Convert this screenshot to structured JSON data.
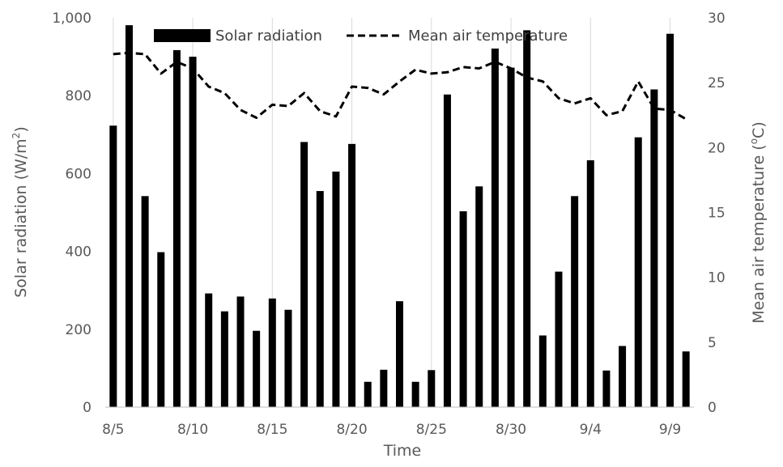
{
  "chart_data": {
    "type": "bar",
    "xlabel": "Time",
    "y_left_label_main": "Solar radiation (W/m",
    "y_left_label_sup": "2",
    "y_left_label_end": ")",
    "y_right_label_main": "Mean air temperature  (",
    "y_right_label_sup": "o",
    "y_right_label_end": "C)",
    "y_left_range": [
      0,
      1000
    ],
    "y_right_range": [
      0,
      30
    ],
    "y_left_ticks": [
      "0",
      "200",
      "400",
      "600",
      "800",
      "1,000"
    ],
    "y_right_ticks": [
      "0",
      "5",
      "10",
      "15",
      "20",
      "25",
      "30"
    ],
    "x_tick_labels": [
      "8/5",
      "8/10",
      "8/15",
      "8/20",
      "8/25",
      "8/30",
      "9/4",
      "9/9"
    ],
    "grid": "vertical",
    "legend_position": "top",
    "series": [
      {
        "name": "Solar radiation",
        "kind": "bar",
        "color": "#000000",
        "values": [
          723,
          981,
          542,
          398,
          917,
          900,
          292,
          246,
          284,
          196,
          279,
          250,
          681,
          555,
          605,
          676,
          65,
          96,
          272,
          65,
          95,
          803,
          503,
          567,
          921,
          872,
          968,
          184,
          348,
          542,
          634,
          94,
          157,
          693,
          816,
          959,
          143
        ]
      },
      {
        "name": "Mean air temperature",
        "kind": "line",
        "style": "dashed",
        "color": "#000000",
        "values": [
          27.2,
          27.3,
          27.2,
          25.7,
          26.6,
          26.1,
          24.7,
          24.2,
          22.9,
          22.3,
          23.3,
          23.2,
          24.2,
          22.8,
          22.4,
          24.7,
          24.6,
          24.1,
          25.1,
          26.0,
          25.7,
          25.8,
          26.2,
          26.1,
          26.6,
          26.1,
          25.4,
          25.1,
          23.8,
          23.4,
          23.8,
          22.5,
          22.8,
          25.1,
          23.0,
          22.9,
          22.2
        ]
      }
    ]
  }
}
